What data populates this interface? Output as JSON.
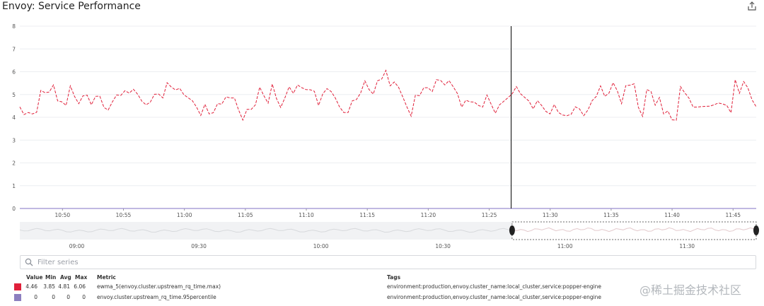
{
  "widget": {
    "title": "Envoy: Service Performance",
    "share_icon": "share-export-icon"
  },
  "chart_data": [
    {
      "type": "line",
      "title": "Envoy: Service Performance",
      "xlabel": "",
      "ylabel": "",
      "ylim": [
        0,
        8
      ],
      "yticks": [
        "0",
        "1",
        "2",
        "3",
        "4",
        "5",
        "6",
        "7",
        "8"
      ],
      "xticks": [
        "10:50",
        "10:55",
        "11:00",
        "11:05",
        "11:10",
        "11:15",
        "11:20",
        "11:25",
        "11:30",
        "11:35",
        "11:40",
        "11:45"
      ],
      "grid": true,
      "cursor_time": "11:26.8",
      "series": [
        {
          "color": "#e0203a",
          "style": "dashed",
          "values": [
            4.46,
            4.12,
            4.21,
            4.15,
            4.22,
            5.18,
            5.08,
            5.11,
            5.42,
            4.72,
            4.68,
            4.52,
            5.38,
            4.92,
            4.6,
            4.94,
            4.97,
            4.55,
            4.92,
            4.93,
            4.43,
            4.32,
            4.68,
            4.98,
            4.96,
            5.17,
            5.06,
            5.23,
            5.01,
            4.71,
            4.55,
            4.66,
            5.01,
            5.02,
            4.85,
            5.52,
            5.33,
            5.2,
            5.27,
            4.99,
            4.86,
            4.73,
            4.45,
            4.08,
            4.57,
            4.15,
            4.2,
            4.6,
            4.58,
            4.9,
            4.85,
            4.85,
            4.32,
            3.88,
            4.35,
            4.35,
            4.55,
            5.32,
            4.95,
            4.62,
            5.46,
            4.82,
            4.43,
            4.86,
            5.34,
            5.05,
            5.42,
            5.3,
            5.22,
            5.21,
            5.14,
            4.52,
            5.03,
            5.26,
            5.13,
            4.84,
            4.45,
            4.21,
            4.21,
            4.72,
            4.78,
            5.07,
            5.6,
            5.22,
            5.02,
            5.6,
            5.68,
            6.06,
            5.38,
            5.55,
            5.32,
            4.9,
            4.45,
            4.05,
            4.97,
            4.95,
            5.3,
            5.3,
            5.13,
            5.65,
            5.62,
            5.42,
            5.61,
            5.34,
            5.04,
            4.45,
            4.75,
            4.68,
            4.67,
            4.52,
            4.45,
            4.98,
            4.58,
            4.18,
            4.55,
            4.7,
            4.86,
            5.03,
            5.35,
            5.03,
            4.87,
            4.71,
            4.37,
            4.73,
            4.52,
            4.26,
            4.15,
            4.56,
            4.21,
            4.1,
            4.07,
            4.13,
            4.46,
            4.37,
            4.07,
            4.32,
            4.73,
            4.92,
            5.38,
            4.92,
            5.06,
            5.52,
            5.16,
            4.6,
            5.39,
            5.41,
            5.47,
            4.44,
            4.04,
            5.22,
            5.13,
            4.53,
            4.87,
            4.15,
            4.28,
            3.89,
            3.87,
            5.35,
            5.08,
            4.85,
            4.45,
            4.45,
            4.47,
            4.48,
            4.49,
            4.55,
            4.63,
            4.59,
            4.52,
            4.2,
            5.65,
            5.05,
            5.57,
            5.3,
            4.77,
            4.46
          ]
        },
        {
          "color": "#9b8fd1",
          "style": "solid",
          "values": [
            0,
            0,
            0,
            0,
            0,
            0,
            0,
            0,
            0,
            0,
            0,
            0
          ]
        }
      ]
    },
    {
      "type": "line",
      "title": "",
      "xticks": [
        "09:00",
        "09:30",
        "10:00",
        "10:30",
        "11:00",
        "11:30"
      ],
      "selected_range": [
        "10:47",
        "11:47"
      ]
    }
  ],
  "filter": {
    "placeholder": "Filter series",
    "value": ""
  },
  "legend": {
    "headers": {
      "value": "Value",
      "min": "Min",
      "avg": "Avg",
      "max": "Max",
      "metric": "Metric",
      "tags": "Tags"
    },
    "rows": [
      {
        "color": "#e0203a",
        "value": "4.46",
        "min": "3.85",
        "avg": "4.81",
        "max": "6.06",
        "metric": "ewma_5(envoy.cluster.upstream_rq_time.max)",
        "tags": "environment:production,envoy.cluster_name:local_cluster,service:popper-engine"
      },
      {
        "color": "#8c7fbf",
        "value": "0",
        "min": "0",
        "avg": "0",
        "max": "0",
        "metric": "envoy.cluster.upstream_rq_time.95percentile",
        "tags": "environment:production,envoy.cluster_name:local_cluster,service:popper-engine"
      }
    ]
  },
  "watermark": "@稀土掘金技术社区"
}
